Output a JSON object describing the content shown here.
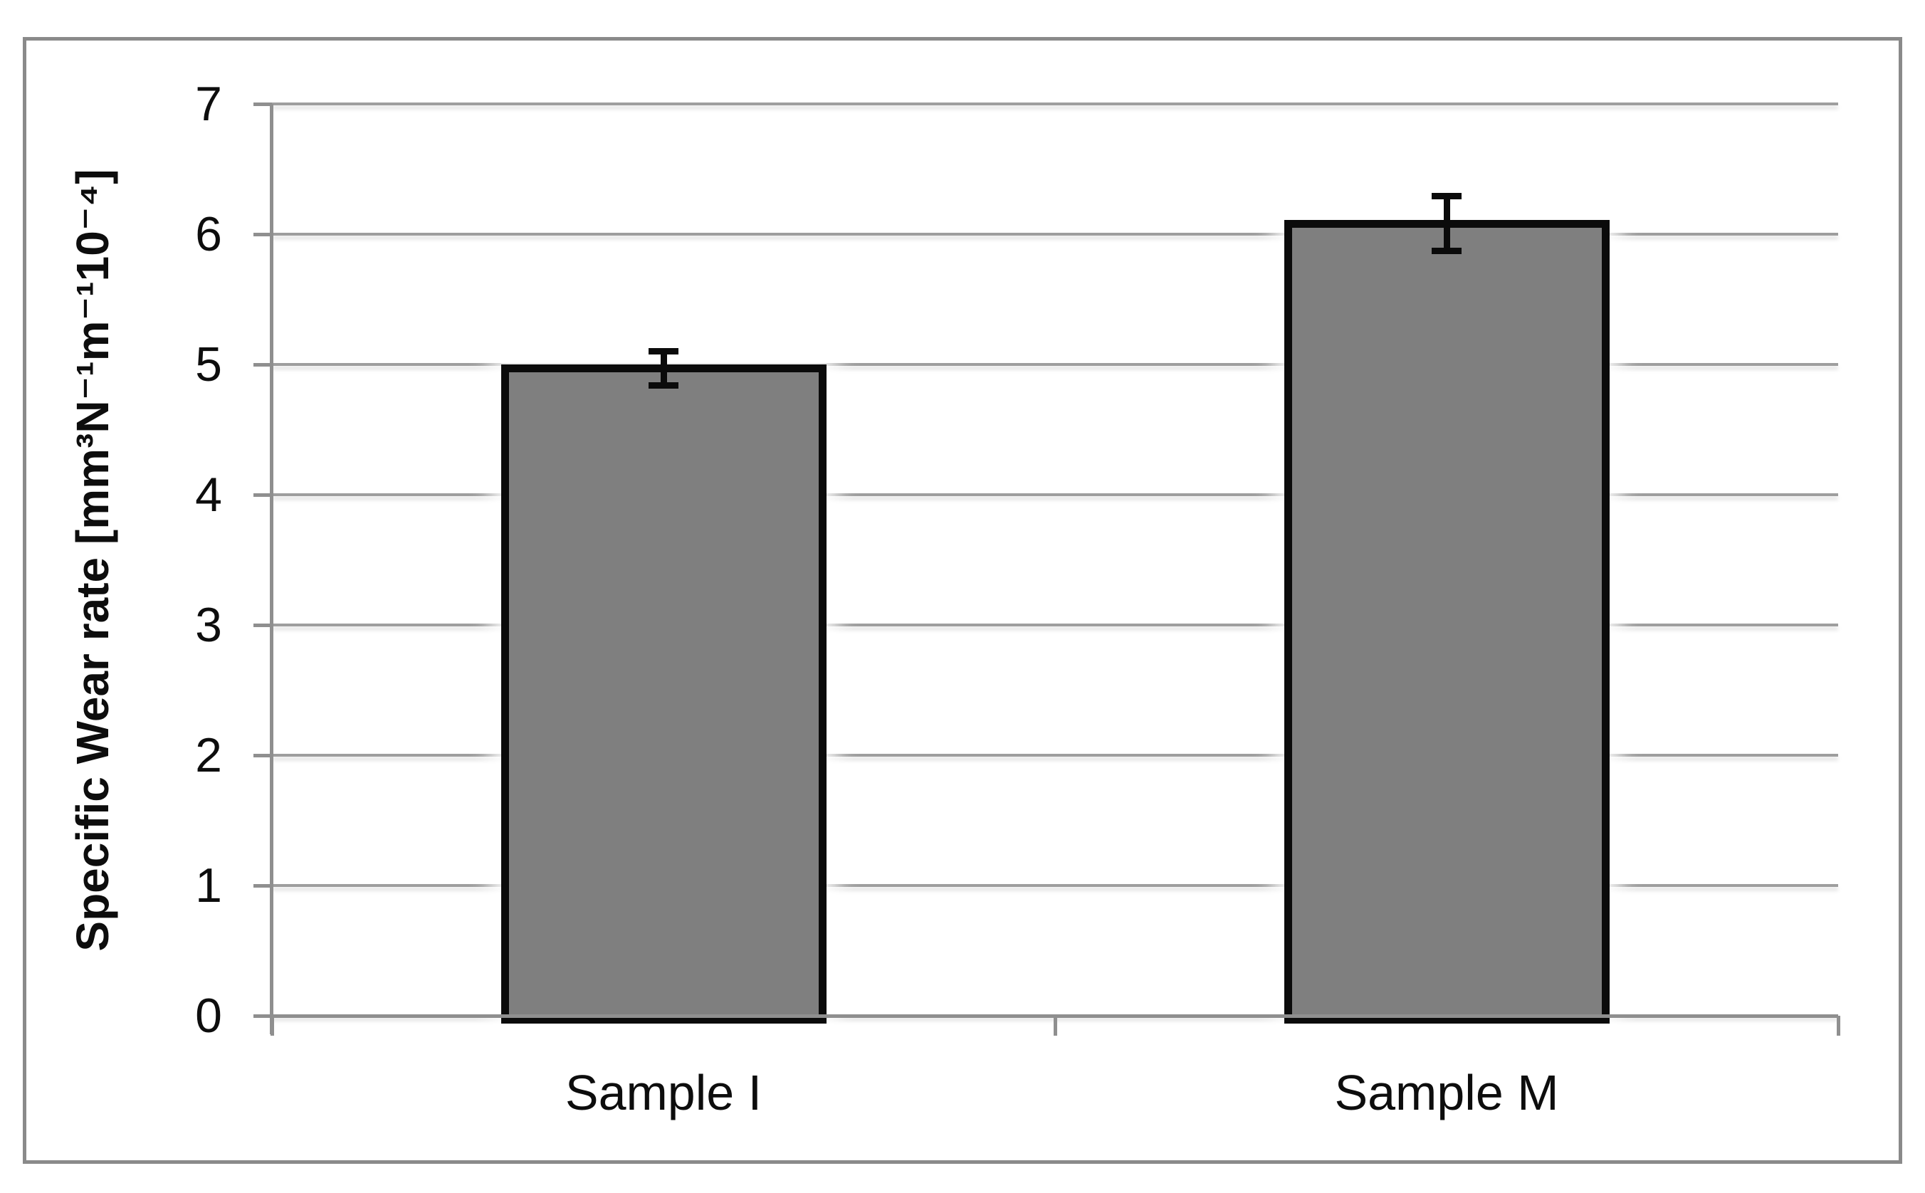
{
  "chart_data": {
    "type": "bar",
    "categories": [
      "Sample I",
      "Sample M"
    ],
    "values": [
      4.97,
      6.08
    ],
    "errors": [
      0.13,
      0.21
    ],
    "title": "",
    "xlabel": "",
    "ylabel": "Specific Wear rate [mm³N⁻¹m⁻¹10⁻⁴]",
    "ylim": [
      0,
      7
    ],
    "yticks": [
      0,
      1,
      2,
      3,
      4,
      5,
      6,
      7
    ],
    "grid": "horizontal",
    "legend_position": "none",
    "bar_fill_color": "#7f7f7f",
    "bar_border_color": "#0b0b0b",
    "gridline_color": "#9e9e9e",
    "axis_color": "#8f8f8f",
    "frame_border_color": "#8a8a8a",
    "text_color": "#0d0d0d"
  }
}
